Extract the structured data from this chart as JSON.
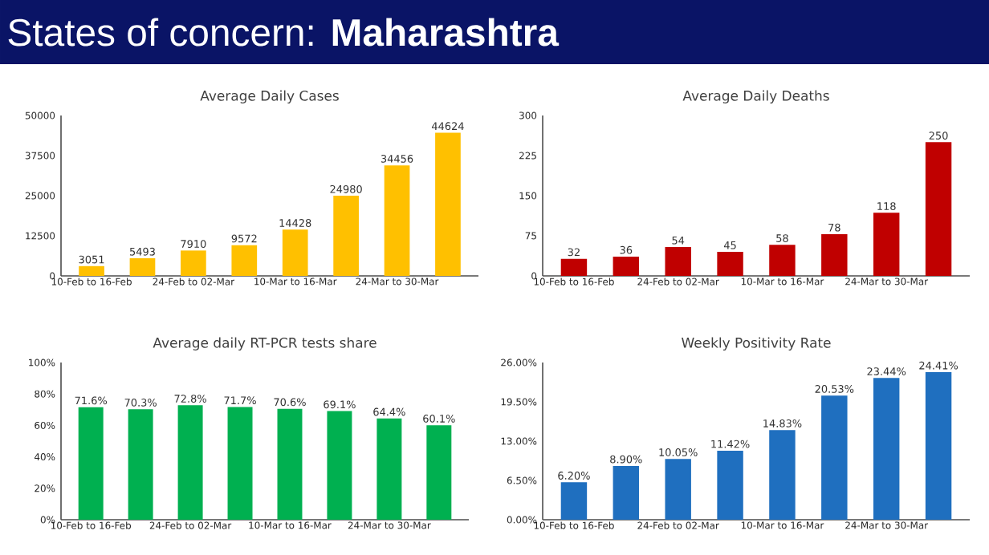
{
  "chart_data": [
    {
      "type": "bar",
      "title": "Average Daily Cases",
      "annotations": [
        "States of concern: **Maharashtra**"
      ],
      "categories": [
        "10-Feb to 16-Feb",
        null,
        "24-Feb to 02-Mar",
        null,
        "10-Mar to 16-Mar",
        null,
        "24-Mar to 30-Mar",
        null
      ],
      "values": [
        3051,
        5493,
        7910,
        9572,
        14428,
        24980,
        34456,
        44624
      ],
      "color": "#ffc000",
      "ylim": [
        0,
        50000
      ],
      "yticks": [
        0,
        12500,
        25000,
        37500,
        50000
      ],
      "data_labels": true
    },
    {
      "type": "bar",
      "title": "Average Daily Deaths",
      "categories": [
        "10-Feb to 16-Feb",
        null,
        "24-Feb to 02-Mar",
        null,
        "10-Mar to 16-Mar",
        null,
        "24-Mar to 30-Mar",
        null
      ],
      "values": [
        32,
        36,
        54,
        45,
        58,
        78,
        118,
        250
      ],
      "color": "#c00000",
      "ylim": [
        0,
        300
      ],
      "yticks": [
        0,
        75,
        150,
        225,
        300
      ],
      "data_labels": true
    },
    {
      "type": "bar",
      "title": "Average daily RT-PCR tests share",
      "categories": [
        "10-Feb to 16-Feb",
        null,
        "24-Feb to 02-Mar",
        null,
        "10-Mar to 16-Mar",
        null,
        "24-Mar to 30-Mar",
        null
      ],
      "values": [
        71.6,
        70.3,
        72.8,
        71.7,
        70.6,
        69.1,
        64.4,
        60.1
      ],
      "value_labels": [
        "71.6%",
        "70.3%",
        "72.8%",
        "71.7%",
        "70.6%",
        "69.1%",
        "64.4%",
        "60.1%"
      ],
      "color": "#00b050",
      "ylim": [
        0,
        100
      ],
      "yticks": [
        {
          "value": 0,
          "label": "0%"
        },
        {
          "value": 20,
          "label": "20%"
        },
        {
          "value": 40,
          "label": "40%"
        },
        {
          "value": 60,
          "label": "60%"
        },
        {
          "value": 80,
          "label": "80%"
        },
        {
          "value": 100,
          "label": "100%"
        }
      ]
    },
    {
      "type": "bar",
      "title": "Weekly Positivity Rate",
      "categories": [
        "10-Feb to 16-Feb",
        null,
        "24-Feb to 02-Mar",
        null,
        "10-Mar to 16-Mar",
        null,
        "24-Mar to 30-Mar",
        null
      ],
      "values": [
        6.2,
        8.9,
        10.05,
        11.42,
        14.83,
        20.53,
        23.44,
        24.41
      ],
      "value_labels": [
        "6.20%",
        "8.90%",
        "10.05%",
        "11.42%",
        "14.83%",
        "20.53%",
        "23.44%",
        "24.41%"
      ],
      "color": "#1f6fbf",
      "ylim": [
        0,
        26
      ],
      "yticks": [
        {
          "value": 0,
          "label": "0.00%"
        },
        {
          "value": 6.5,
          "label": "6.50%"
        },
        {
          "value": 13,
          "label": "13.00%"
        },
        {
          "value": 19.5,
          "label": "19.50%"
        },
        {
          "value": 26,
          "label": "26.00%"
        }
      ]
    }
  ]
}
